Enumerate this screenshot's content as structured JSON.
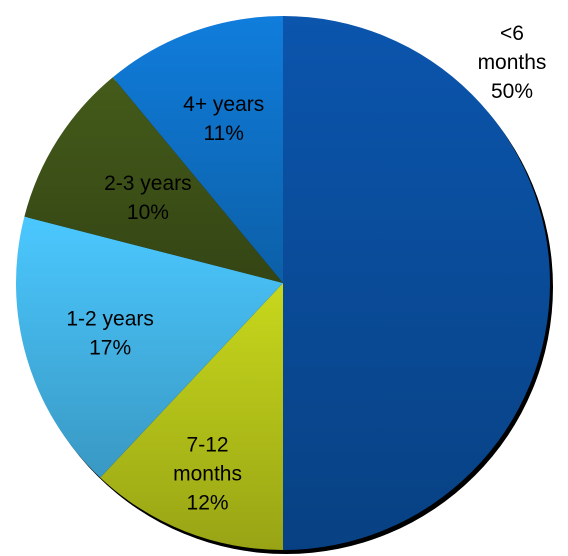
{
  "chart_data": {
    "type": "pie",
    "categories": [
      "<6 months",
      "7-12 months",
      "1-2 years",
      "2-3 years",
      "4+ years"
    ],
    "values": [
      50,
      12,
      17,
      10,
      11
    ],
    "labels": [
      [
        "<6",
        "months",
        "50%"
      ],
      [
        "7-12",
        "months",
        "12%"
      ],
      [
        "1-2 years",
        "17%"
      ],
      [
        "2-3 years",
        "10%"
      ],
      [
        "4+ years",
        "11%"
      ]
    ],
    "colors": [
      "#0a4fa0",
      "#b9c81a",
      "#45b9ee",
      "#3f5418",
      "#0f74cc"
    ],
    "start_angle_deg": 0,
    "direction": "clockwise",
    "legend": "none",
    "title": ""
  }
}
